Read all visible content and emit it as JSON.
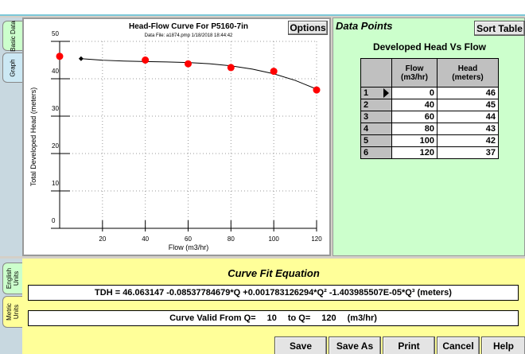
{
  "tabs_left": [
    "Basic Data",
    "Graph"
  ],
  "graph_panel": {
    "options_button": "Options"
  },
  "chart_data": {
    "type": "scatter",
    "title": "Head-Flow Curve For P5160-7in",
    "subtitle": "Data File: a1874.pmp 1/18/2018 18:44:42",
    "x_label": "Flow (m3/hr)",
    "y_label": "Total Developed Head (meters)",
    "x": [
      0,
      40,
      60,
      80,
      100,
      120
    ],
    "series": [
      {
        "color": "#ff0000",
        "values": [
          46,
          45,
          44,
          43,
          42,
          37
        ]
      }
    ],
    "fit": {
      "color": "#000000",
      "x": [
        10,
        20,
        30,
        40,
        50,
        60,
        70,
        80,
        90,
        100,
        110,
        120
      ],
      "values": [
        45.37,
        44.96,
        44.73,
        44.6,
        44.5,
        44.33,
        44.01,
        43.46,
        42.59,
        41.32,
        39.56,
        37.23
      ]
    },
    "xlim": [
      0,
      120
    ],
    "xticks": [
      20,
      40,
      60,
      80,
      100,
      120
    ],
    "ylim": [
      0,
      50
    ],
    "yticks": [
      0,
      10,
      20,
      30,
      40,
      50
    ],
    "grid": true
  },
  "data_points": {
    "title": "Data Points",
    "sort_button": "Sort Table",
    "table_title": "Developed Head Vs Flow",
    "columns": [
      "Flow (m3/hr)",
      "Head (meters)"
    ],
    "row_numbers": [
      1,
      2,
      3,
      4,
      5,
      6
    ]
  },
  "tabs_bottom": [
    "English Units",
    "Metric Units"
  ],
  "curve_fit": {
    "title": "Curve Fit Equation",
    "equation": "TDH = 46.063147 -0.08537784679*Q +0.001783126294*Q² -1.403985507E-05*Q³ (meters)",
    "valid_label": "Curve Valid From Q=",
    "valid_from": 10,
    "valid_to_label": "to Q=",
    "valid_to": 120,
    "valid_unit": "(m3/hr)"
  },
  "buttons": [
    "Save",
    "Save As",
    "Print",
    "Cancel",
    "Help"
  ]
}
